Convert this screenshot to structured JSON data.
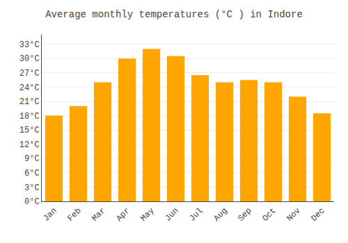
{
  "chart_data": {
    "type": "bar",
    "title": "Average monthly temperatures (°C ) in Indore",
    "categories": [
      "Jan",
      "Feb",
      "Mar",
      "Apr",
      "May",
      "Jun",
      "Jul",
      "Aug",
      "Sep",
      "Oct",
      "Nov",
      "Dec"
    ],
    "values": [
      18,
      20,
      25,
      30,
      32,
      30.5,
      26.5,
      25,
      25.5,
      25,
      22,
      18.5
    ],
    "color": "#FFA500",
    "ylim": [
      0,
      35
    ],
    "yticks": [
      {
        "value": 0,
        "label": "0°C"
      },
      {
        "value": 3,
        "label": "3°C"
      },
      {
        "value": 6,
        "label": "6°C"
      },
      {
        "value": 9,
        "label": "9°C"
      },
      {
        "value": 12,
        "label": "12°C"
      },
      {
        "value": 15,
        "label": "15°C"
      },
      {
        "value": 18,
        "label": "18°C"
      },
      {
        "value": 21,
        "label": "21°C"
      },
      {
        "value": 24,
        "label": "24°C"
      },
      {
        "value": 27,
        "label": "27°C"
      },
      {
        "value": 30,
        "label": "30°C"
      },
      {
        "value": 33,
        "label": "33°C"
      }
    ],
    "grid": true
  }
}
